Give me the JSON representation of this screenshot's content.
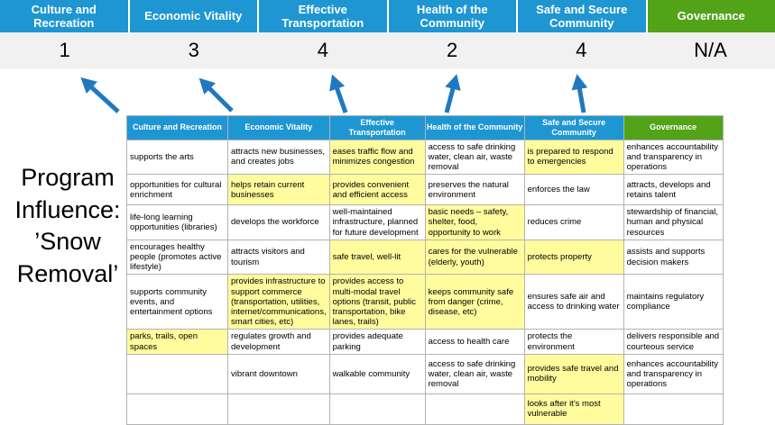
{
  "colors": {
    "blue": "#1E96D2",
    "green": "#53A318",
    "highlight": "#FFFC9E",
    "score_band": "#F1F1F2",
    "arrow": "#2079C0",
    "border": "#B3B3B3"
  },
  "top_band": {
    "columns": [
      {
        "label": "Culture and Recreation",
        "score": "1",
        "color": "blue"
      },
      {
        "label": "Economic Vitality",
        "score": "3",
        "color": "blue"
      },
      {
        "label": "Effective Transportation",
        "score": "4",
        "color": "blue"
      },
      {
        "label": "Health of the Community",
        "score": "2",
        "color": "blue"
      },
      {
        "label": "Safe and Secure Community",
        "score": "4",
        "color": "blue"
      },
      {
        "label": "Governance",
        "score": "N/A",
        "color": "green"
      }
    ]
  },
  "title": {
    "full": "Program Influence: ’Snow Removal’",
    "lines": [
      "Program",
      "Influence:",
      "’Snow",
      "Removal’"
    ]
  },
  "matrix": {
    "headers": [
      {
        "label": "Culture and Recreation",
        "color": "blue"
      },
      {
        "label": "Economic Vitality",
        "color": "blue"
      },
      {
        "label": "Effective Transportation",
        "color": "blue"
      },
      {
        "label": "Health of the Community",
        "color": "blue"
      },
      {
        "label": "Safe and Secure Community",
        "color": "blue"
      },
      {
        "label": "Governance",
        "color": "green"
      }
    ],
    "rows": [
      [
        {
          "text": "supports the arts",
          "highlight": false
        },
        {
          "text": "attracts new businesses, and creates jobs",
          "highlight": false
        },
        {
          "text": "eases traffic flow and minimizes congestion",
          "highlight": true
        },
        {
          "text": "access to safe drinking water, clean air, waste removal",
          "highlight": false
        },
        {
          "text": "is prepared to respond to emergencies",
          "highlight": true
        },
        {
          "text": "enhances accountability and transparency in operations",
          "highlight": false
        }
      ],
      [
        {
          "text": "opportunities for cultural enrichment",
          "highlight": false
        },
        {
          "text": "helps retain current businesses",
          "highlight": true
        },
        {
          "text": "provides convenient and efficient access",
          "highlight": true
        },
        {
          "text": "preserves the natural environment",
          "highlight": false
        },
        {
          "text": "enforces the law",
          "highlight": false
        },
        {
          "text": "attracts, develops and retains talent",
          "highlight": false
        }
      ],
      [
        {
          "text": "life-long learning opportunities (libraries)",
          "highlight": false
        },
        {
          "text": "develops the workforce",
          "highlight": false
        },
        {
          "text": "well-maintained infrastructure, planned for future development",
          "highlight": false
        },
        {
          "text": "basic needs – safety, shelter, food, opportunity to work",
          "highlight": true
        },
        {
          "text": "reduces crime",
          "highlight": false
        },
        {
          "text": "stewardship of financial, human and physical resources",
          "highlight": false
        }
      ],
      [
        {
          "text": "encourages healthy people (promotes active lifestyle)",
          "highlight": false
        },
        {
          "text": "attracts visitors and tourism",
          "highlight": false
        },
        {
          "text": "safe travel, well-lit",
          "highlight": true
        },
        {
          "text": "cares for the vulnerable (elderly, youth)",
          "highlight": true
        },
        {
          "text": "protects property",
          "highlight": true
        },
        {
          "text": "assists and supports decision makers",
          "highlight": false
        }
      ],
      [
        {
          "text": "supports community events, and entertainment options",
          "highlight": false
        },
        {
          "text": "provides infrastructure to support commerce (transportation, utilities, internet/communications, smart cities, etc)",
          "highlight": true
        },
        {
          "text": "provides access to multi-modal travel options (transit, public transportation, bike lanes, trails)",
          "highlight": true
        },
        {
          "text": "keeps community safe from danger (crime, disease, etc)",
          "highlight": true
        },
        {
          "text": "ensures safe air and access to drinking water",
          "highlight": false
        },
        {
          "text": "maintains regulatory compliance",
          "highlight": false
        }
      ],
      [
        {
          "text": "parks, trails, open spaces",
          "highlight": true
        },
        {
          "text": "regulates growth and development",
          "highlight": false
        },
        {
          "text": "provides adequate parking",
          "highlight": false
        },
        {
          "text": "access to health care",
          "highlight": false
        },
        {
          "text": "protects the environment",
          "highlight": false
        },
        {
          "text": "delivers responsible and courteous service",
          "highlight": false
        }
      ],
      [
        {
          "text": "",
          "highlight": false
        },
        {
          "text": "vibrant downtown",
          "highlight": false
        },
        {
          "text": "walkable community",
          "highlight": false
        },
        {
          "text": "access to safe drinking water, clean air, waste removal",
          "highlight": false
        },
        {
          "text": "provides safe travel and mobility",
          "highlight": true
        },
        {
          "text": "enhances accountability and transparency in operations",
          "highlight": false
        }
      ],
      [
        {
          "text": "",
          "highlight": false
        },
        {
          "text": "",
          "highlight": false
        },
        {
          "text": "",
          "highlight": false
        },
        {
          "text": "",
          "highlight": false
        },
        {
          "text": "looks after it's most vulnerable",
          "highlight": true
        },
        {
          "text": "",
          "highlight": false
        }
      ]
    ]
  }
}
